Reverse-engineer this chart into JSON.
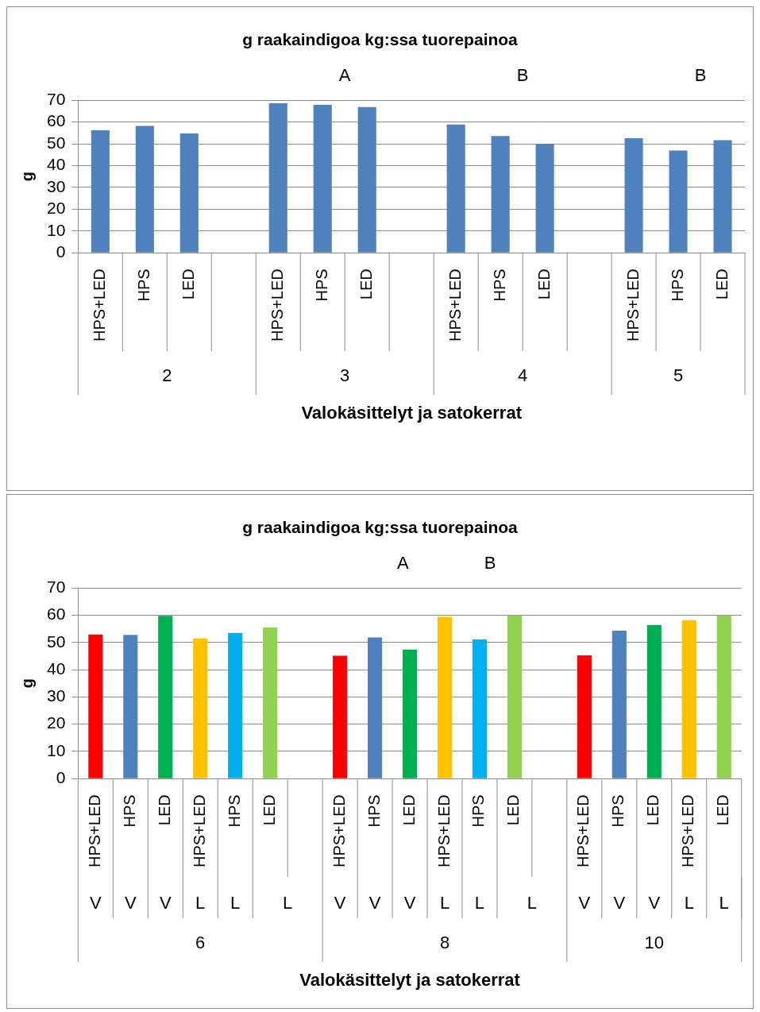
{
  "chart_data": [
    {
      "type": "bar",
      "title": "g raakaindigoa kg:ssa tuorepainoa",
      "xlabel": "Valokäsittelyt ja satokerrat",
      "ylabel": "g",
      "categories": [
        "HPS+LED",
        "HPS",
        "LED",
        null,
        "HPS+LED",
        "HPS",
        "LED",
        null,
        "HPS+LED",
        "HPS",
        "LED",
        null,
        "HPS+LED",
        "HPS",
        "LED"
      ],
      "values": [
        56.2,
        58.2,
        54.8,
        null,
        68.6,
        67.9,
        66.9,
        null,
        58.9,
        53.6,
        50.0,
        null,
        52.6,
        46.9,
        51.7
      ],
      "color": "#4f81bd",
      "ylim": [
        0,
        70
      ],
      "yticks": [
        0,
        10,
        20,
        30,
        40,
        50,
        60,
        70
      ],
      "grid": "y",
      "legend": false,
      "annotations": [
        "A",
        "B",
        "B",
        "2",
        "3",
        "4",
        "5"
      ]
    },
    {
      "type": "bar",
      "title": "g raakaindigoa kg:ssa tuorepainoa",
      "xlabel": "Valokäsittelyt ja satokerrat",
      "ylabel": "g",
      "categories": [
        "HPS+LED",
        "HPS",
        "LED",
        "HPS+LED",
        "HPS",
        "LED",
        null,
        "HPS+LED",
        "HPS",
        "LED",
        "HPS+LED",
        "HPS",
        "LED",
        null,
        "HPS+LED",
        "HPS",
        "LED",
        "HPS+LED",
        "LED"
      ],
      "values": [
        52.9,
        52.8,
        59.8,
        51.5,
        53.5,
        55.5,
        null,
        45.1,
        51.8,
        47.4,
        59.4,
        51.1,
        59.9,
        null,
        45.3,
        54.3,
        56.4,
        58.2,
        59.9
      ],
      "colors": [
        "#ff0000",
        "#4f81bd",
        "#00b050",
        "#ffc000",
        "#00b0f0",
        "#92d050",
        "#ffffff",
        "#ff0000",
        "#4f81bd",
        "#00b050",
        "#ffc000",
        "#00b0f0",
        "#92d050",
        "#ffffff",
        "#ff0000",
        "#4f81bd",
        "#00b050",
        "#ffc000",
        "#92d050"
      ],
      "ylim": [
        0,
        70
      ],
      "yticks": [
        0,
        10,
        20,
        30,
        40,
        50,
        60,
        70
      ],
      "grid": "y",
      "legend": false,
      "annotations": [
        "A",
        "B",
        "V",
        "V",
        "V",
        "L",
        "L",
        "L",
        "V",
        "V",
        "V",
        "L",
        "L",
        "L",
        "V",
        "V",
        "V",
        "L",
        "L",
        "6",
        "8",
        "10"
      ]
    }
  ]
}
